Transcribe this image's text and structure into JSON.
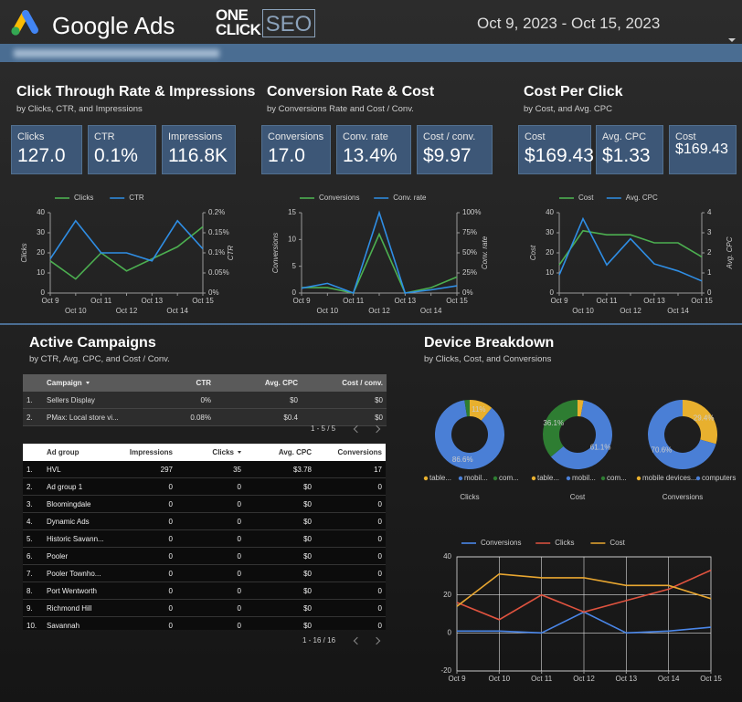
{
  "header": {
    "brand": "Google Ads",
    "partner_logo": {
      "line1": "ONE",
      "line2": "CLICK",
      "box": "SEO"
    },
    "date_range": "Oct 9, 2023 - Oct 15, 2023"
  },
  "sections": [
    {
      "title": "Click Through Rate & Impressions",
      "subtitle": "by Clicks, CTR, and Impressions",
      "scorecards": [
        {
          "label": "Clicks",
          "value": "127.0"
        },
        {
          "label": "CTR",
          "value": "0.1%"
        },
        {
          "label": "Impressions",
          "value": "116.8K"
        }
      ],
      "chart": {
        "type": "line",
        "categories": [
          "Oct 9",
          "Oct 10",
          "Oct 11",
          "Oct 12",
          "Oct 13",
          "Oct 14",
          "Oct 15"
        ],
        "ylabel": "Clicks",
        "y2label": "CTR",
        "ylim": [
          0,
          40
        ],
        "yticks": [
          0,
          10,
          20,
          30,
          40
        ],
        "y2lim": [
          0,
          0.2
        ],
        "y2ticks": [
          {
            "value": 0,
            "label": "0%"
          },
          {
            "value": 0.05,
            "label": "0.05%"
          },
          {
            "value": 0.1,
            "label": "0.1%"
          },
          {
            "value": 0.15,
            "label": "0.15%"
          },
          {
            "value": 0.2,
            "label": "0.2%"
          }
        ],
        "series": [
          {
            "name": "Clicks",
            "color": "#4caf50",
            "values": [
              16,
              7,
              20,
              11,
              17,
              23,
              33
            ]
          },
          {
            "name": "CTR",
            "color": "#2f8ee5",
            "axis": "y2",
            "values": [
              0.085,
              0.18,
              0.1,
              0.1,
              0.08,
              0.18,
              0.11
            ]
          }
        ]
      }
    },
    {
      "title": "Conversion Rate & Cost",
      "subtitle": "by Conversions Rate and Cost / Conv.",
      "scorecards": [
        {
          "label": "Conversions",
          "value": "17.0"
        },
        {
          "label": "Conv. rate",
          "value": "13.4%"
        },
        {
          "label": "Cost / conv.",
          "value": "$9.97"
        }
      ],
      "chart": {
        "type": "line",
        "categories": [
          "Oct 9",
          "Oct 10",
          "Oct 11",
          "Oct 12",
          "Oct 13",
          "Oct 14",
          "Oct 15"
        ],
        "ylabel": "Conversions",
        "y2label": "Conv. rate",
        "ylim": [
          0,
          15
        ],
        "yticks": [
          0,
          5,
          10,
          15
        ],
        "y2lim": [
          0,
          100
        ],
        "y2ticks": [
          {
            "value": 0,
            "label": "0%"
          },
          {
            "value": 25,
            "label": "25%"
          },
          {
            "value": 50,
            "label": "50%"
          },
          {
            "value": 75,
            "label": "75%"
          },
          {
            "value": 100,
            "label": "100%"
          }
        ],
        "series": [
          {
            "name": "Conversions",
            "color": "#4caf50",
            "values": [
              1,
              1,
              0,
              11,
              0,
              1,
              3
            ]
          },
          {
            "name": "Conv. rate",
            "color": "#2f8ee5",
            "axis": "y2",
            "values": [
              6,
              12,
              0,
              100,
              0,
              4,
              9
            ]
          }
        ]
      }
    },
    {
      "title": "Cost Per Click",
      "subtitle": "by Cost, and Avg. CPC",
      "scorecards": [
        {
          "label": "Cost",
          "value": "$169.43"
        },
        {
          "label": "Avg. CPC",
          "value": "$1.33"
        },
        {
          "label": "Cost",
          "value": "$169.43"
        }
      ],
      "chart": {
        "type": "line",
        "categories": [
          "Oct 9",
          "Oct 10",
          "Oct 11",
          "Oct 12",
          "Oct 13",
          "Oct 14",
          "Oct 15"
        ],
        "ylabel": "Cost",
        "y2label": "Avg. CPC",
        "ylim": [
          0,
          40
        ],
        "yticks": [
          0,
          10,
          20,
          30,
          40
        ],
        "y2lim": [
          0,
          4
        ],
        "y2ticks": [
          0,
          1,
          2,
          3,
          4
        ],
        "series": [
          {
            "name": "Cost",
            "color": "#4caf50",
            "values": [
              14,
              31,
              29,
              29,
              25,
              25,
              18
            ]
          },
          {
            "name": "Avg. CPC",
            "color": "#2f8ee5",
            "axis": "y2",
            "values": [
              0.9,
              3.7,
              1.4,
              2.7,
              1.45,
              1.1,
              0.6
            ]
          }
        ]
      }
    }
  ],
  "campaigns": {
    "title": "Active Campaigns",
    "subtitle": "by CTR, Avg. CPC, and Cost / Conv.",
    "table": {
      "columns": [
        "Campaign",
        "CTR",
        "Avg. CPC",
        "Cost / conv."
      ],
      "sort_column": 0,
      "rows": [
        [
          "1.",
          "Sellers Display",
          "0%",
          "$0",
          "$0"
        ],
        [
          "2.",
          "PMax: Local store vi...",
          "0.08%",
          "$0.4",
          "$0"
        ]
      ],
      "pagination": "1 - 5 / 5"
    },
    "ad_groups": {
      "columns": [
        "Ad group",
        "Impressions",
        "Clicks",
        "Avg. CPC",
        "Conversions"
      ],
      "sort_column": 2,
      "rows": [
        [
          "1.",
          "HVL",
          "297",
          "35",
          "$3.78",
          "17"
        ],
        [
          "2.",
          "Ad group 1",
          "0",
          "0",
          "$0",
          "0"
        ],
        [
          "3.",
          "Bloomingdale",
          "0",
          "0",
          "$0",
          "0"
        ],
        [
          "4.",
          "Dynamic Ads",
          "0",
          "0",
          "$0",
          "0"
        ],
        [
          "5.",
          "Historic Savann...",
          "0",
          "0",
          "$0",
          "0"
        ],
        [
          "6.",
          "Pooler",
          "0",
          "0",
          "$0",
          "0"
        ],
        [
          "7.",
          "Pooler Townho...",
          "0",
          "0",
          "$0",
          "0"
        ],
        [
          "8.",
          "Port Wentworth",
          "0",
          "0",
          "$0",
          "0"
        ],
        [
          "9.",
          "Richmond Hill",
          "0",
          "0",
          "$0",
          "0"
        ],
        [
          "10.",
          "Savannah",
          "0",
          "0",
          "$0",
          "0"
        ]
      ],
      "pagination": "1 - 16 / 16"
    }
  },
  "devices": {
    "title": "Device Breakdown",
    "subtitle": "by Clicks, Cost, and Conversions",
    "donuts": [
      {
        "type": "pie",
        "title": "Clicks",
        "categories": [
          "table...",
          "mobil...",
          "com..."
        ],
        "colors": [
          "#e8b02e",
          "#4a7fd6",
          "#2e7d32"
        ],
        "values": [
          11,
          86.6,
          2.4
        ],
        "value_labels": [
          "11%",
          "86.6%",
          null
        ]
      },
      {
        "type": "pie",
        "title": "Cost",
        "categories": [
          "table...",
          "mobil...",
          "com..."
        ],
        "colors": [
          "#e8b02e",
          "#4a7fd6",
          "#2e7d32"
        ],
        "values": [
          2.8,
          61.1,
          36.1
        ],
        "value_labels": [
          null,
          "61.1%",
          "36.1%"
        ]
      },
      {
        "type": "pie",
        "title": "Conversions",
        "categories": [
          "mobile devices...",
          "computers"
        ],
        "colors": [
          "#e8b02e",
          "#4a7fd6"
        ],
        "values": [
          29.4,
          70.6
        ],
        "value_labels": [
          "29.4%",
          "70.6%"
        ]
      }
    ],
    "trend": {
      "type": "line",
      "categories": [
        "Oct 9",
        "Oct 10",
        "Oct 11",
        "Oct 12",
        "Oct 13",
        "Oct 14",
        "Oct 15"
      ],
      "ylim": [
        -20,
        40
      ],
      "yticks": [
        -20,
        0,
        20,
        40
      ],
      "grid": true,
      "series": [
        {
          "name": "Conversions",
          "color": "#4a86e8",
          "values": [
            1,
            1,
            0,
            11,
            0,
            1,
            3
          ]
        },
        {
          "name": "Clicks",
          "color": "#e0533f",
          "values": [
            16,
            7,
            20,
            11,
            17,
            23,
            33
          ]
        },
        {
          "name": "Cost",
          "color": "#e8a630",
          "values": [
            14,
            31,
            29,
            29,
            25,
            25,
            18
          ]
        }
      ]
    }
  }
}
